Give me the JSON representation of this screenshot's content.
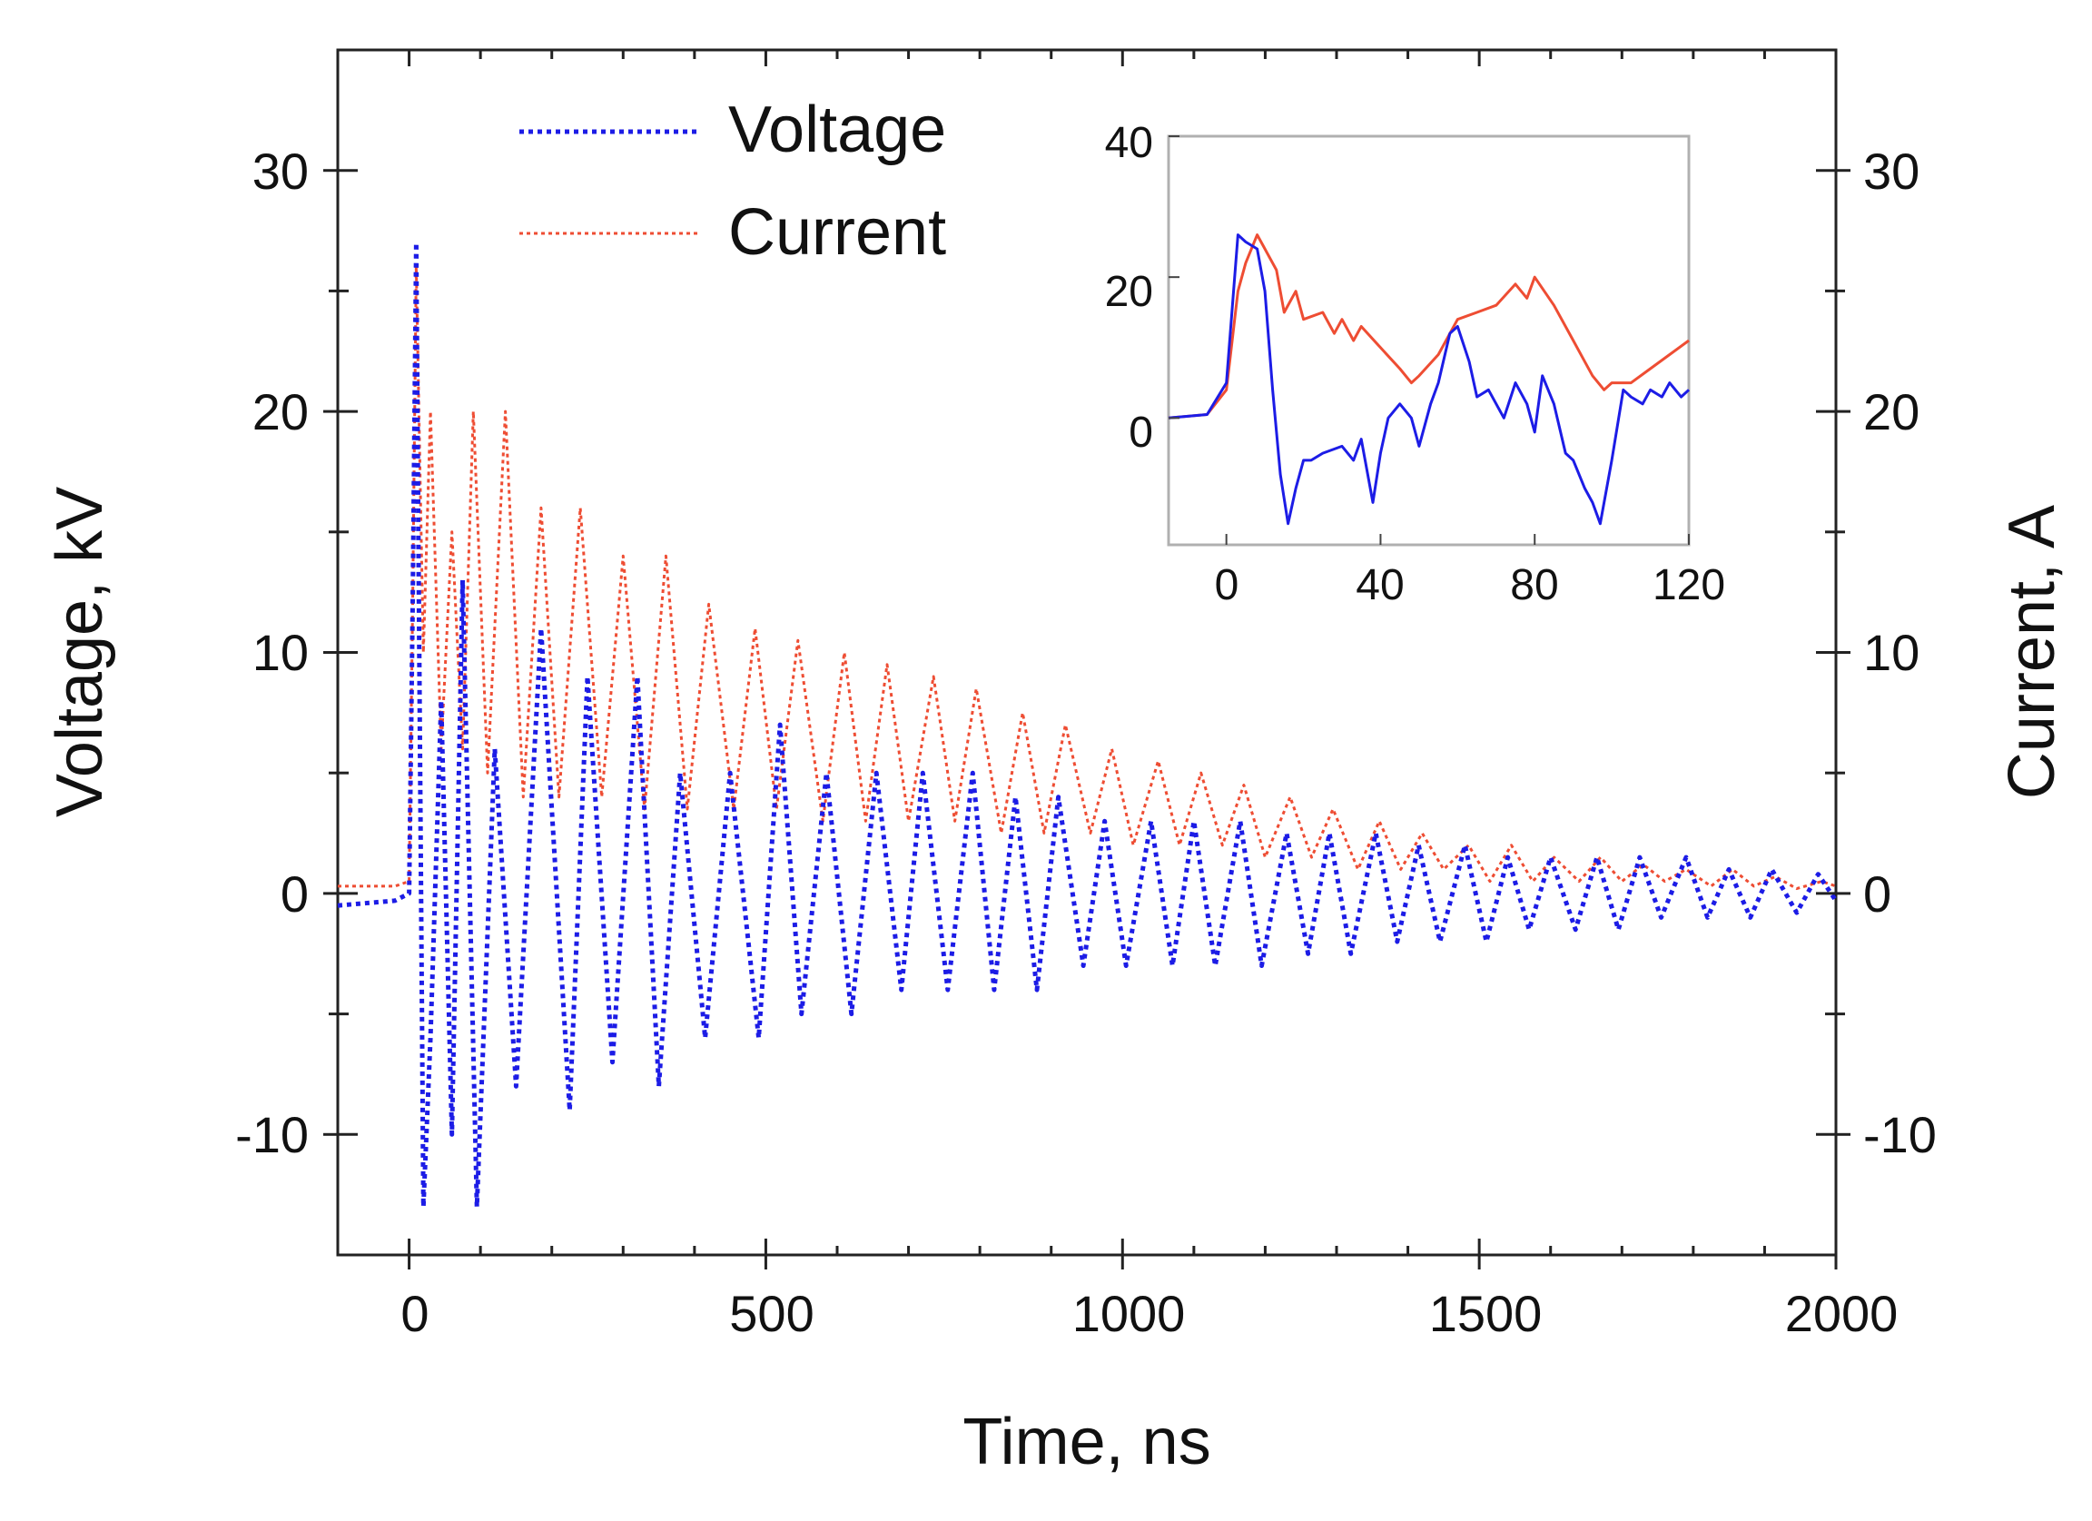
{
  "colors": {
    "voltage": "#1c1ce6",
    "current": "#ee4d33",
    "axis": "#222222",
    "inset_frame": "#b0b0b0"
  },
  "chart_data": [
    {
      "type": "line",
      "title": "",
      "xlabel": "Time, ns",
      "ylabel": "Voltage, kV",
      "y2label": "Current, A",
      "xlim": [
        -100,
        2000
      ],
      "ylim": [
        -15,
        35
      ],
      "y2lim": [
        -15,
        35
      ],
      "xticks": [
        0,
        500,
        1000,
        1500,
        2000
      ],
      "xtick_labels": [
        "0",
        "500",
        "1000",
        "1500",
        "2000"
      ],
      "yticks": [
        -10,
        0,
        10,
        20,
        30
      ],
      "ytick_labels": [
        "-10",
        "0",
        "10",
        "20",
        "30"
      ],
      "y2ticks": [
        -10,
        0,
        10,
        20,
        30
      ],
      "y2tick_labels": [
        "-10",
        "0",
        "10",
        "20",
        "30"
      ],
      "legend": {
        "position": "top-center",
        "entries": [
          "Voltage",
          "Current"
        ]
      },
      "series": [
        {
          "name": "Voltage",
          "axis": "left",
          "style": "dotted",
          "x": [
            -100,
            -20,
            0,
            5,
            10,
            20,
            30,
            45,
            60,
            75,
            95,
            120,
            150,
            185,
            225,
            250,
            285,
            320,
            350,
            380,
            415,
            450,
            490,
            520,
            550,
            585,
            620,
            655,
            690,
            720,
            755,
            790,
            820,
            850,
            880,
            910,
            945,
            975,
            1005,
            1040,
            1070,
            1100,
            1130,
            1165,
            1195,
            1230,
            1260,
            1290,
            1320,
            1355,
            1385,
            1415,
            1445,
            1480,
            1510,
            1540,
            1570,
            1600,
            1635,
            1665,
            1695,
            1725,
            1755,
            1790,
            1820,
            1850,
            1880,
            1910,
            1945,
            1975,
            2000
          ],
          "y": [
            -0.5,
            -0.3,
            0,
            12,
            27,
            -13,
            -6,
            8,
            -10,
            13,
            -13,
            6,
            -8,
            11,
            -9,
            9,
            -7,
            9,
            -8,
            5,
            -6,
            5,
            -6,
            7,
            -5,
            5,
            -5,
            5,
            -4,
            5,
            -4,
            5,
            -4,
            4,
            -4,
            4,
            -3,
            3,
            -3,
            3,
            -3,
            3,
            -3,
            3,
            -3,
            2.5,
            -2.5,
            2.5,
            -2.5,
            2.5,
            -2,
            2,
            -2,
            2,
            -2,
            1.5,
            -1.5,
            1.5,
            -1.5,
            1.5,
            -1.5,
            1.5,
            -1,
            1.5,
            -1,
            1,
            -1,
            1,
            -0.8,
            0.8,
            -0.3
          ]
        },
        {
          "name": "Current",
          "axis": "right",
          "style": "dotted",
          "x": [
            -100,
            -20,
            0,
            5,
            10,
            20,
            30,
            45,
            60,
            75,
            90,
            110,
            135,
            160,
            185,
            210,
            240,
            270,
            300,
            330,
            360,
            390,
            420,
            455,
            485,
            515,
            545,
            580,
            610,
            640,
            670,
            700,
            735,
            765,
            795,
            830,
            860,
            890,
            920,
            955,
            985,
            1015,
            1050,
            1080,
            1110,
            1140,
            1170,
            1200,
            1235,
            1265,
            1295,
            1330,
            1360,
            1390,
            1420,
            1450,
            1485,
            1515,
            1545,
            1575,
            1605,
            1640,
            1670,
            1700,
            1730,
            1760,
            1790,
            1825,
            1855,
            1885,
            1915,
            1945,
            1980,
            2000
          ],
          "y": [
            0.3,
            0.3,
            0.5,
            12,
            26,
            10,
            20,
            6,
            15,
            6,
            20,
            5,
            20,
            4,
            16,
            4,
            16,
            4,
            14,
            3.5,
            14,
            3.5,
            12,
            3.5,
            11,
            3.5,
            10.5,
            3,
            10,
            3,
            9.5,
            3,
            9,
            3,
            8.5,
            2.5,
            7.5,
            2.5,
            7,
            2.5,
            6,
            2,
            5.5,
            2,
            5,
            2,
            4.5,
            1.5,
            4,
            1.5,
            3.5,
            1,
            3,
            1,
            2.5,
            1,
            2,
            0.5,
            2,
            0.5,
            1.5,
            0.5,
            1.5,
            0.5,
            1.2,
            0.5,
            1,
            0.3,
            1,
            0.3,
            0.7,
            0.2,
            0.5,
            0.3
          ]
        }
      ]
    },
    {
      "type": "line",
      "title": "",
      "xlabel": "",
      "ylabel": "",
      "xlim": [
        -15,
        120
      ],
      "ylim": [
        -18,
        40
      ],
      "xticks": [
        0,
        40,
        80,
        120
      ],
      "xtick_labels": [
        "0",
        "40",
        "80",
        "120"
      ],
      "yticks": [
        0,
        20,
        40
      ],
      "ytick_labels": [
        "0",
        "20",
        "40"
      ],
      "series": [
        {
          "name": "Voltage",
          "style": "solid",
          "x": [
            -15,
            -5,
            0,
            3,
            5,
            8,
            10,
            12,
            14,
            16,
            18,
            20,
            22,
            25,
            30,
            33,
            35,
            38,
            40,
            42,
            45,
            48,
            50,
            53,
            55,
            58,
            60,
            63,
            65,
            68,
            70,
            72,
            75,
            78,
            80,
            82,
            85,
            88,
            90,
            93,
            95,
            97,
            100,
            103,
            105,
            108,
            110,
            113,
            115,
            118,
            120
          ],
          "y": [
            0,
            0.5,
            5,
            26,
            25,
            24,
            18,
            4,
            -8,
            -15,
            -10,
            -6,
            -6,
            -5,
            -4,
            -6,
            -3,
            -12,
            -5,
            0,
            2,
            0,
            -4,
            2,
            5,
            12,
            13,
            8,
            3,
            4,
            2,
            0,
            5,
            2,
            -2,
            6,
            2,
            -5,
            -6,
            -10,
            -12,
            -15,
            -6,
            4,
            3,
            2,
            4,
            3,
            5,
            3,
            4
          ]
        },
        {
          "name": "Current",
          "style": "solid",
          "x": [
            -15,
            -5,
            0,
            3,
            5,
            8,
            10,
            13,
            15,
            18,
            20,
            25,
            28,
            30,
            33,
            35,
            40,
            45,
            48,
            50,
            55,
            60,
            65,
            70,
            75,
            78,
            80,
            85,
            90,
            93,
            95,
            98,
            100,
            105,
            110,
            115,
            120
          ],
          "y": [
            0,
            0.5,
            4,
            18,
            22,
            26,
            24,
            21,
            15,
            18,
            14,
            15,
            12,
            14,
            11,
            13,
            10,
            7,
            5,
            6,
            9,
            14,
            15,
            16,
            19,
            17,
            20,
            16,
            11,
            8,
            6,
            4,
            5,
            5,
            7,
            9,
            11
          ]
        }
      ]
    }
  ]
}
